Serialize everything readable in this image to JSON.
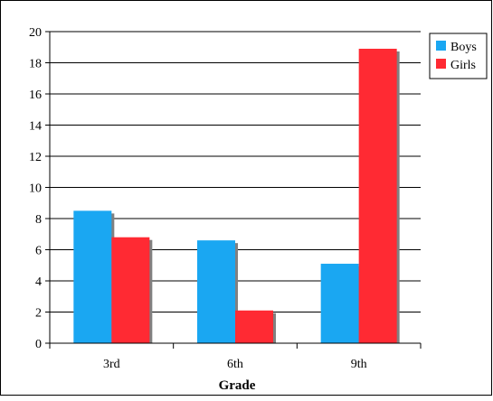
{
  "chart_data": {
    "type": "bar",
    "title": "",
    "xlabel": "Grade",
    "ylabel": "",
    "categories": [
      "3rd",
      "6th",
      "9th"
    ],
    "series": [
      {
        "name": "Boys",
        "values": [
          8.5,
          6.6,
          5.1
        ],
        "color": "#1aa7f2"
      },
      {
        "name": "Girls",
        "values": [
          6.8,
          2.1,
          18.9
        ],
        "color": "#ff2a33"
      }
    ],
    "ylim": [
      0,
      20
    ],
    "yticks": [
      "0",
      "2",
      "4",
      "6",
      "8",
      "10",
      "12",
      "14",
      "16",
      "18",
      "20"
    ],
    "grid": true,
    "legend": "right"
  }
}
